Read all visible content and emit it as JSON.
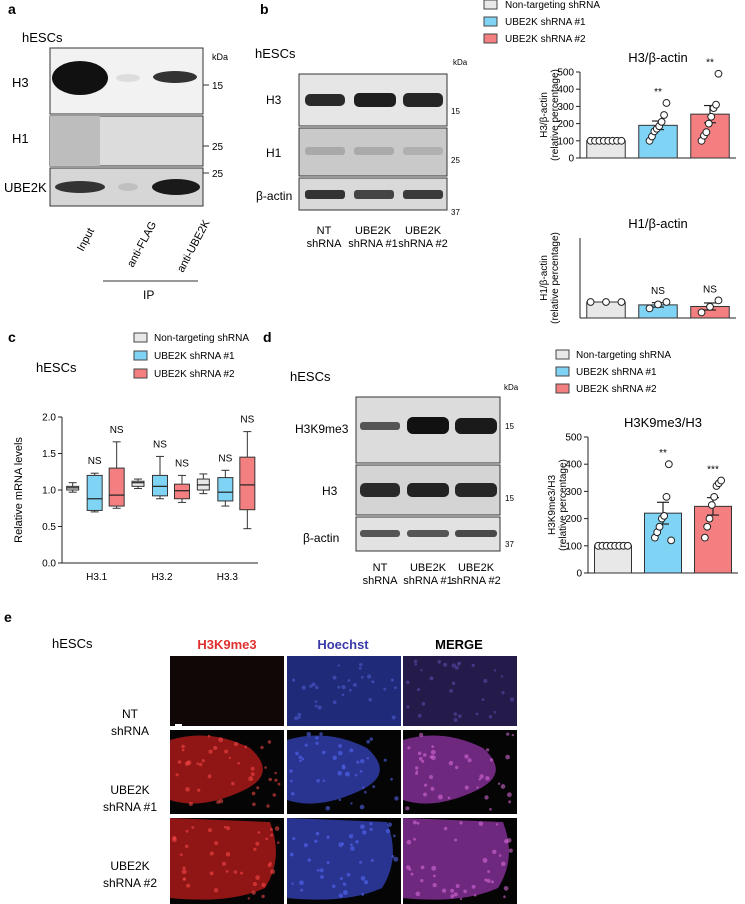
{
  "panels": {
    "a": {
      "letter": "a",
      "cell_label": "hESCs",
      "kda_label": "kDa",
      "row_labels": [
        "H3",
        "H1",
        "UBE2K"
      ],
      "markers": [
        "15",
        "25",
        "25"
      ],
      "lane_labels": [
        "Input",
        "anti-FLAG",
        "anti-UBE2K"
      ],
      "ip_label": "IP"
    },
    "b": {
      "letter": "b",
      "cell_label": "hESCs",
      "kda_label": "kDa",
      "row_labels": [
        "H3",
        "H1",
        "β-actin"
      ],
      "markers": [
        "15",
        "25",
        "37"
      ],
      "lanes": [
        [
          "NT",
          "shRNA"
        ],
        [
          "UBE2K",
          "shRNA #1"
        ],
        [
          "UBE2K",
          "shRNA #2"
        ]
      ]
    },
    "c": {
      "letter": "c",
      "cell_label": "hESCs"
    },
    "d": {
      "letter": "d",
      "cell_label": "hESCs",
      "kda_label": "kDa",
      "row_labels": [
        "H3K9me3",
        "H3",
        "β-actin"
      ],
      "markers": [
        "15",
        "15",
        "37"
      ],
      "lanes": [
        [
          "NT",
          "shRNA"
        ],
        [
          "UBE2K",
          "shRNA #1"
        ],
        [
          "UBE2K",
          "shRNA #2"
        ]
      ]
    },
    "e": {
      "letter": "e",
      "cell_label": "hESCs",
      "columns": [
        "H3K9me3",
        "Hoechst",
        "MERGE"
      ],
      "rows": [
        [
          "NT",
          "shRNA"
        ],
        [
          "UBE2K",
          "shRNA #1"
        ],
        [
          "UBE2K",
          "shRNA #2"
        ]
      ]
    }
  },
  "legend": {
    "entries": [
      "Non-targeting shRNA",
      "UBE2K shRNA #1",
      "UBE2K shRNA #2"
    ],
    "colors": [
      "#e8e8e8",
      "#7fd3f5",
      "#f47f80"
    ]
  },
  "colors": {
    "h3k9me3_title": "#e03030",
    "hoechst_title": "#3a3aa8"
  },
  "chart_data": [
    {
      "id": "b-h3",
      "type": "bar",
      "title": "H3/β-actin",
      "ylabel": [
        "H3/β-actin",
        "(relative percentage)"
      ],
      "ylim": [
        0,
        500
      ],
      "yticks": [
        0,
        100,
        200,
        300,
        400,
        500
      ],
      "categories": [
        "Non-targeting shRNA",
        "UBE2K shRNA #1",
        "UBE2K shRNA #2"
      ],
      "values": [
        100,
        190,
        255
      ],
      "errors": [
        0,
        25,
        50
      ],
      "points": [
        [
          100,
          100,
          100,
          100,
          100,
          100,
          100,
          100
        ],
        [
          100,
          125,
          155,
          170,
          185,
          210,
          250,
          320
        ],
        [
          100,
          130,
          150,
          200,
          240,
          290,
          310,
          490
        ]
      ],
      "significance": [
        "",
        "**",
        "**"
      ]
    },
    {
      "id": "b-h1",
      "type": "bar",
      "title": "H1/β-actin",
      "ylabel": [
        "H1/β-actin",
        "(relative percentage)"
      ],
      "ylim": [
        0,
        500
      ],
      "yticks": [],
      "categories": [
        "Non-targeting shRNA",
        "UBE2K shRNA #1",
        "UBE2K shRNA #2"
      ],
      "values": [
        100,
        82,
        72
      ],
      "errors": [
        0,
        14,
        22
      ],
      "points": [
        [
          100,
          100,
          100
        ],
        [
          60,
          85,
          100
        ],
        [
          35,
          70,
          110
        ]
      ],
      "significance": [
        "",
        "NS",
        "NS"
      ]
    },
    {
      "id": "c-mrna",
      "type": "box",
      "ylabel": "Relative mRNA levels",
      "ylim": [
        0,
        2.0
      ],
      "yticks": [
        0.0,
        0.5,
        1.0,
        1.5,
        2.0
      ],
      "categories": [
        "H3.1",
        "H3.2",
        "H3.3"
      ],
      "series": [
        {
          "name": "Non-targeting shRNA",
          "boxes": [
            [
              0.97,
              1.0,
              1.03,
              1.05,
              1.1
            ],
            [
              1.02,
              1.05,
              1.1,
              1.12,
              1.15
            ],
            [
              0.95,
              1.0,
              1.07,
              1.15,
              1.22
            ]
          ]
        },
        {
          "name": "UBE2K shRNA #1",
          "boxes": [
            [
              0.7,
              0.72,
              0.88,
              1.2,
              1.23
            ],
            [
              0.88,
              0.92,
              1.05,
              1.2,
              1.46
            ],
            [
              0.78,
              0.85,
              0.97,
              1.17,
              1.27
            ]
          ]
        },
        {
          "name": "UBE2K shRNA #2",
          "boxes": [
            [
              0.75,
              0.78,
              0.93,
              1.3,
              1.66
            ],
            [
              0.83,
              0.88,
              0.99,
              1.08,
              1.2
            ],
            [
              0.47,
              0.73,
              1.07,
              1.45,
              1.8
            ]
          ]
        }
      ],
      "significance": [
        [
          "",
          "NS",
          "NS"
        ],
        [
          "",
          "NS",
          "NS"
        ],
        [
          "",
          "NS",
          "NS"
        ]
      ]
    },
    {
      "id": "d-h3k9me3",
      "type": "bar",
      "title": "H3K9me3/H3",
      "ylabel": [
        "H3K9me3/H3",
        "(relative percentage)"
      ],
      "ylim": [
        0,
        500
      ],
      "yticks": [
        0,
        100,
        200,
        300,
        400,
        500
      ],
      "categories": [
        "Non-targeting shRNA",
        "UBE2K shRNA #1",
        "UBE2K shRNA #2"
      ],
      "values": [
        100,
        220,
        245
      ],
      "errors": [
        0,
        40,
        32
      ],
      "points": [
        [
          100,
          100,
          100,
          100,
          100,
          100,
          100,
          100
        ],
        [
          130,
          150,
          170,
          200,
          210,
          280,
          400,
          120
        ],
        [
          130,
          170,
          200,
          250,
          280,
          320,
          330,
          340
        ]
      ],
      "significance": [
        "",
        "**",
        "***"
      ]
    }
  ]
}
